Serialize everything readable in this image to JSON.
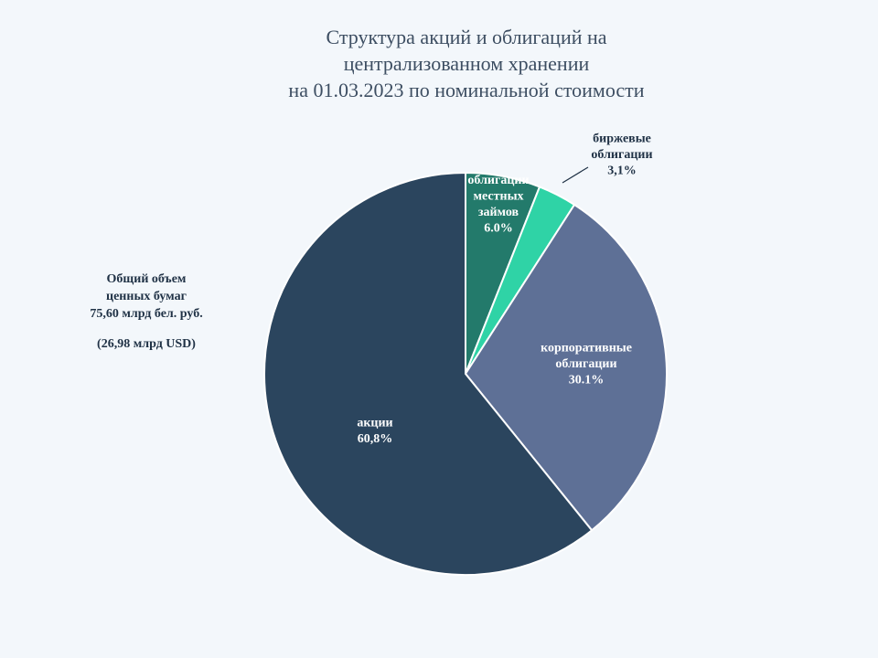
{
  "title": {
    "line1": "Структура акций и облигаций на",
    "line2": "централизованном хранении",
    "line3": "на 01.03.2023 по номинальной стоимости"
  },
  "summary": {
    "line1": "Общий объем",
    "line2": "ценных бумаг",
    "line3": "75,60  млрд бел. руб.",
    "line4": "(26,98  млрд USD)"
  },
  "chart_data": {
    "type": "pie",
    "start_angle_deg": 0,
    "direction": "clockwise",
    "slices": [
      {
        "label_lines": [
          "облигации",
          "местных",
          "займов"
        ],
        "value_label": "6.0%",
        "value": 6.0,
        "color": "#237a6b",
        "label_color": "#ffffff"
      },
      {
        "label_lines": [
          "биржевые",
          "облигации"
        ],
        "value_label": "3,1%",
        "value": 3.1,
        "color": "#2fd3a6",
        "label_color": "#1f3145",
        "leader_line": true
      },
      {
        "label_lines": [
          "корпоративные",
          "облигации"
        ],
        "value_label": "30.1%",
        "value": 30.1,
        "color": "#5e7096",
        "label_color": "#ffffff"
      },
      {
        "label_lines": [
          "акции"
        ],
        "value_label": "60,8%",
        "value": 60.8,
        "color": "#2b455e",
        "label_color": "#ffffff"
      }
    ]
  }
}
